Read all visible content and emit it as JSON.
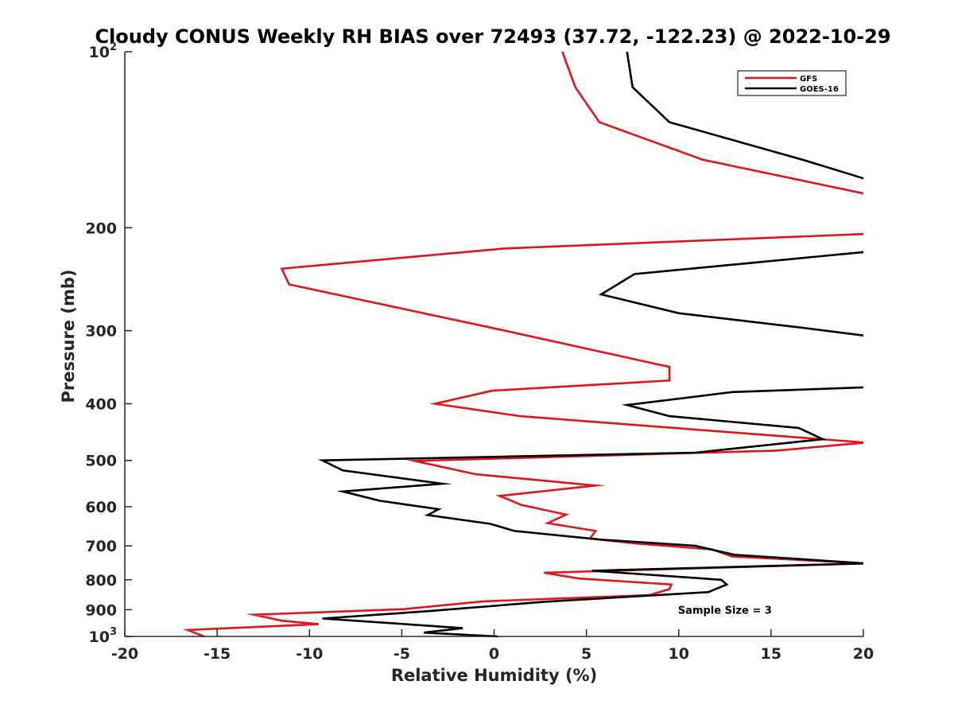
{
  "chart_data": {
    "type": "line",
    "title": "Cloudy CONUS Weekly RH BIAS over 72493 (37.72, -122.23) @ 2022-10-29",
    "xlabel": "Relative Humidity (%)",
    "ylabel": "Pressure (mb)",
    "xlim": [
      -20,
      20
    ],
    "ylim": [
      100,
      1000
    ],
    "yscale": "log",
    "y_reversed": true,
    "grid": false,
    "legend": "top-right",
    "x_ticks": [
      {
        "value": -20,
        "label": "-20"
      },
      {
        "value": -15,
        "label": "-15"
      },
      {
        "value": -10,
        "label": "-10"
      },
      {
        "value": -5,
        "label": "-5"
      },
      {
        "value": 0,
        "label": "0"
      },
      {
        "value": 5,
        "label": "5"
      },
      {
        "value": 10,
        "label": "10"
      },
      {
        "value": 15,
        "label": "15"
      },
      {
        "value": 20,
        "label": "20"
      }
    ],
    "y_ticks": [
      {
        "value": 100,
        "label": "10",
        "sup": "2"
      },
      {
        "value": 200,
        "label": "200",
        "sup": ""
      },
      {
        "value": 300,
        "label": "300",
        "sup": ""
      },
      {
        "value": 400,
        "label": "400",
        "sup": ""
      },
      {
        "value": 500,
        "label": "500",
        "sup": ""
      },
      {
        "value": 600,
        "label": "600",
        "sup": ""
      },
      {
        "value": 700,
        "label": "700",
        "sup": ""
      },
      {
        "value": 800,
        "label": "800",
        "sup": ""
      },
      {
        "value": 900,
        "label": "900",
        "sup": ""
      },
      {
        "value": 1000,
        "label": "10",
        "sup": "3"
      }
    ],
    "annotations": [
      {
        "text": "Sample Size = 3",
        "x": 12.5,
        "y": 900
      }
    ],
    "series": [
      {
        "name": "GFS",
        "color": "#e2161a",
        "points": [
          [
            3.7,
            100
          ],
          [
            4.4,
            115
          ],
          [
            5.7,
            132
          ],
          [
            11.3,
            153
          ],
          [
            20.1,
            175
          ],
          [
            20.1,
            205
          ],
          [
            0.6,
            217
          ],
          [
            -11.5,
            235
          ],
          [
            -11.1,
            250
          ],
          [
            0.6,
            300
          ],
          [
            9.5,
            346
          ],
          [
            9.5,
            365
          ],
          [
            -0.1,
            380
          ],
          [
            -3.2,
            400
          ],
          [
            1.4,
            420
          ],
          [
            20.1,
            466
          ],
          [
            15.3,
            481
          ],
          [
            -4.3,
            501
          ],
          [
            -1.0,
            528
          ],
          [
            5.5,
            552
          ],
          [
            0.3,
            575
          ],
          [
            1.5,
            596
          ],
          [
            3.9,
            619
          ],
          [
            2.9,
            640
          ],
          [
            5.5,
            660
          ],
          [
            5.2,
            680
          ],
          [
            7.6,
            693
          ],
          [
            11.8,
            710
          ],
          [
            12.9,
            730
          ],
          [
            20.1,
            750
          ],
          [
            2.7,
            778
          ],
          [
            4.6,
            796
          ],
          [
            9.6,
            815
          ],
          [
            9.5,
            830
          ],
          [
            8.4,
            850
          ],
          [
            -0.6,
            871
          ],
          [
            -4.9,
            898
          ],
          [
            -13.0,
            918
          ],
          [
            -11.5,
            940
          ],
          [
            -9.5,
            953
          ],
          [
            -16.6,
            975
          ],
          [
            -15.7,
            1000
          ]
        ]
      },
      {
        "name": "GOES-16",
        "color": "#000000",
        "points": [
          [
            7.2,
            100
          ],
          [
            7.5,
            115
          ],
          [
            9.5,
            132
          ],
          [
            16.7,
            153
          ],
          [
            20.1,
            165
          ],
          [
            20.1,
            220
          ],
          [
            7.6,
            240
          ],
          [
            5.8,
            260
          ],
          [
            10.0,
            280
          ],
          [
            16.5,
            296
          ],
          [
            20.1,
            306
          ],
          [
            20.1,
            375
          ],
          [
            12.9,
            382
          ],
          [
            7.2,
            402
          ],
          [
            9.5,
            420
          ],
          [
            16.5,
            440
          ],
          [
            17.8,
            460
          ],
          [
            10.9,
            485
          ],
          [
            -9.3,
            500
          ],
          [
            -8.2,
            520
          ],
          [
            -2.8,
            548
          ],
          [
            -8.2,
            565
          ],
          [
            -6.2,
            586
          ],
          [
            -3.0,
            606
          ],
          [
            -3.6,
            620
          ],
          [
            -0.2,
            642
          ],
          [
            1.1,
            660
          ],
          [
            5.8,
            683
          ],
          [
            10.9,
            700
          ],
          [
            13.0,
            725
          ],
          [
            20.1,
            750
          ],
          [
            5.3,
            772
          ],
          [
            12.3,
            800
          ],
          [
            12.6,
            815
          ],
          [
            11.6,
            840
          ],
          [
            2.8,
            872
          ],
          [
            -3.5,
            905
          ],
          [
            -9.3,
            932
          ],
          [
            -5.4,
            950
          ],
          [
            -1.7,
            968
          ],
          [
            -3.8,
            985
          ],
          [
            0.2,
            1000
          ]
        ]
      }
    ]
  }
}
